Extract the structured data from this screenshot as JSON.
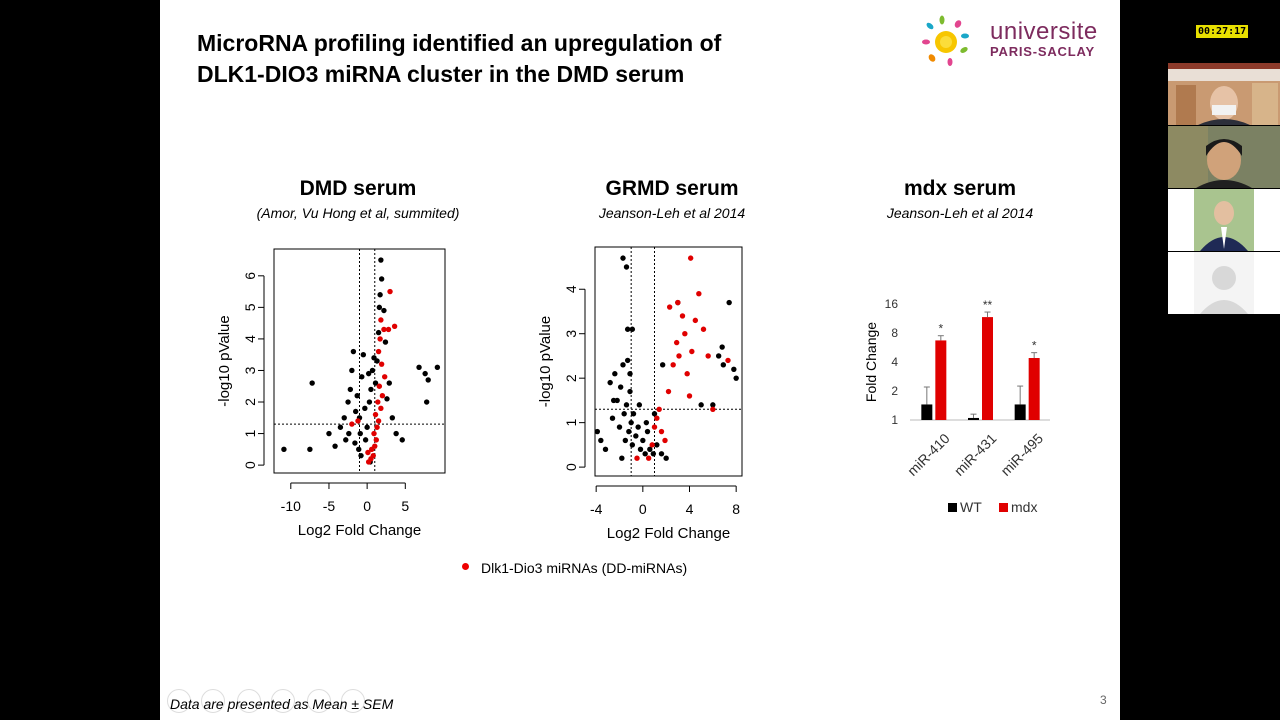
{
  "slide": {
    "title_line1": "MicroRNA profiling identified an upregulation of",
    "title_line2": "DLK1-DIO3 miRNA cluster in the DMD serum",
    "logo_line1": "universite",
    "logo_line2": "PARIS-SACLAY",
    "legend_label": "Dlk1-Dio3 miRNAs (DD-miRNAs)",
    "footnote": "Data are presented as Mean ± SEM",
    "page_number": "3"
  },
  "panels": [
    {
      "title": "DMD serum",
      "subtitle": "(Amor, Vu Hong et al, summited)"
    },
    {
      "title": "GRMD serum",
      "subtitle": "Jeanson-Leh et al 2014"
    },
    {
      "title": "mdx serum",
      "subtitle": "Jeanson-Leh et al 2014"
    }
  ],
  "colors": {
    "dd_mirna": "#e00000",
    "other_mirna": "#000000",
    "wt": "#000000",
    "mdx": "#e00000",
    "logo": "#7d2b5e"
  },
  "chart_data": [
    {
      "type": "scatter",
      "title": "DMD serum",
      "xlabel": "Log2 Fold Change",
      "ylabel": "-log10 pValue",
      "xticks": [
        -10,
        -5,
        0,
        5
      ],
      "yticks": [
        0,
        1,
        2,
        3,
        4,
        5,
        6
      ],
      "xlim": [
        -12.2,
        10.2
      ],
      "ylim": [
        -0.25,
        6.85
      ],
      "vlines": [
        -1,
        1
      ],
      "hline": 1.3,
      "series": [
        {
          "name": "Dlk1-Dio3 miRNAs (DD-miRNAs)",
          "color": "#e00000",
          "points": [
            [
              0.2,
              0.1
            ],
            [
              0.5,
              0.2
            ],
            [
              0.8,
              0.3
            ],
            [
              0.1,
              0.4
            ],
            [
              0.6,
              0.5
            ],
            [
              1.0,
              0.6
            ],
            [
              1.2,
              0.8
            ],
            [
              0.9,
              1.0
            ],
            [
              1.3,
              1.2
            ],
            [
              1.5,
              1.4
            ],
            [
              1.1,
              1.6
            ],
            [
              1.8,
              1.8
            ],
            [
              1.4,
              2.0
            ],
            [
              2.0,
              2.2
            ],
            [
              1.6,
              2.5
            ],
            [
              2.3,
              2.8
            ],
            [
              1.9,
              3.2
            ],
            [
              1.5,
              3.6
            ],
            [
              1.7,
              4.0
            ],
            [
              2.2,
              4.3
            ],
            [
              1.8,
              4.6
            ],
            [
              2.8,
              4.3
            ],
            [
              3.6,
              4.4
            ],
            [
              3.0,
              5.5
            ],
            [
              -2.0,
              1.3
            ],
            [
              -1.2,
              1.4
            ]
          ]
        },
        {
          "name": "other",
          "color": "#000000",
          "points": [
            [
              -10.9,
              0.5
            ],
            [
              -7.5,
              0.5
            ],
            [
              -7.2,
              2.6
            ],
            [
              -5.0,
              1.0
            ],
            [
              -4.2,
              0.6
            ],
            [
              -3.5,
              1.2
            ],
            [
              -3.0,
              1.5
            ],
            [
              -2.8,
              0.8
            ],
            [
              -2.5,
              2.0
            ],
            [
              -2.2,
              2.4
            ],
            [
              -2.0,
              3.0
            ],
            [
              -1.8,
              3.6
            ],
            [
              -1.5,
              1.7
            ],
            [
              -1.3,
              2.2
            ],
            [
              -1.1,
              0.5
            ],
            [
              -0.9,
              1.0
            ],
            [
              -0.7,
              2.8
            ],
            [
              -0.5,
              3.5
            ],
            [
              -0.3,
              1.8
            ],
            [
              -0.2,
              0.8
            ],
            [
              0.0,
              1.2
            ],
            [
              0.3,
              2.0
            ],
            [
              0.5,
              2.4
            ],
            [
              0.7,
              3.0
            ],
            [
              0.9,
              3.4
            ],
            [
              1.1,
              2.6
            ],
            [
              1.3,
              3.3
            ],
            [
              1.5,
              4.2
            ],
            [
              1.6,
              5.0
            ],
            [
              1.7,
              5.4
            ],
            [
              1.9,
              5.9
            ],
            [
              1.8,
              6.5
            ],
            [
              2.2,
              4.9
            ],
            [
              2.4,
              3.9
            ],
            [
              2.6,
              2.1
            ],
            [
              2.9,
              2.6
            ],
            [
              3.3,
              1.5
            ],
            [
              3.8,
              1.0
            ],
            [
              4.6,
              0.8
            ],
            [
              6.8,
              3.1
            ],
            [
              7.6,
              2.9
            ],
            [
              8.0,
              2.7
            ],
            [
              7.8,
              2.0
            ],
            [
              9.2,
              3.1
            ],
            [
              -2.4,
              1.0
            ],
            [
              -1.6,
              0.7
            ],
            [
              -0.8,
              0.3
            ],
            [
              0.4,
              0.1
            ],
            [
              -1.0,
              1.5
            ],
            [
              0.2,
              2.9
            ]
          ]
        }
      ]
    },
    {
      "type": "scatter",
      "title": "GRMD serum",
      "xlabel": "Log2 Fold Change",
      "ylabel": "-log10 pValue",
      "xticks": [
        -4,
        0,
        4,
        8
      ],
      "yticks": [
        0,
        1,
        2,
        3,
        4
      ],
      "xlim": [
        -4.1,
        8.5
      ],
      "ylim": [
        -0.2,
        4.95
      ],
      "vlines": [
        -1,
        1
      ],
      "hline": 1.3,
      "series": [
        {
          "name": "Dlk1-Dio3 miRNAs (DD-miRNAs)",
          "color": "#e00000",
          "points": [
            [
              0.5,
              0.2
            ],
            [
              0.8,
              0.5
            ],
            [
              1.0,
              0.9
            ],
            [
              1.2,
              1.1
            ],
            [
              1.4,
              1.3
            ],
            [
              1.6,
              0.8
            ],
            [
              1.9,
              0.6
            ],
            [
              2.2,
              1.7
            ],
            [
              2.6,
              2.3
            ],
            [
              2.9,
              2.8
            ],
            [
              3.1,
              2.5
            ],
            [
              3.4,
              3.4
            ],
            [
              3.6,
              3.0
            ],
            [
              3.8,
              2.1
            ],
            [
              4.0,
              1.6
            ],
            [
              4.2,
              2.6
            ],
            [
              4.5,
              3.3
            ],
            [
              4.8,
              3.9
            ],
            [
              5.2,
              3.1
            ],
            [
              5.6,
              2.5
            ],
            [
              6.0,
              1.3
            ],
            [
              2.3,
              3.6
            ],
            [
              3.0,
              3.7
            ],
            [
              4.1,
              4.7
            ],
            [
              7.3,
              2.4
            ],
            [
              -0.5,
              0.2
            ]
          ]
        },
        {
          "name": "other",
          "color": "#000000",
          "points": [
            [
              -3.9,
              0.8
            ],
            [
              -3.6,
              0.6
            ],
            [
              -3.2,
              0.4
            ],
            [
              -2.8,
              1.9
            ],
            [
              -2.6,
              1.1
            ],
            [
              -2.4,
              2.1
            ],
            [
              -2.2,
              1.5
            ],
            [
              -2.0,
              0.9
            ],
            [
              -1.9,
              1.8
            ],
            [
              -1.7,
              2.3
            ],
            [
              -1.6,
              1.2
            ],
            [
              -1.5,
              0.6
            ],
            [
              -1.4,
              1.4
            ],
            [
              -1.3,
              2.4
            ],
            [
              -1.2,
              0.8
            ],
            [
              -1.1,
              1.7
            ],
            [
              -1.0,
              1.0
            ],
            [
              -0.9,
              0.5
            ],
            [
              -0.8,
              1.2
            ],
            [
              -0.6,
              0.7
            ],
            [
              -0.4,
              0.9
            ],
            [
              -0.2,
              0.4
            ],
            [
              0.0,
              0.6
            ],
            [
              0.2,
              0.3
            ],
            [
              0.4,
              0.8
            ],
            [
              0.6,
              0.4
            ],
            [
              0.9,
              0.3
            ],
            [
              1.2,
              0.5
            ],
            [
              1.6,
              0.3
            ],
            [
              2.0,
              0.2
            ],
            [
              -1.7,
              4.7
            ],
            [
              -1.4,
              4.5
            ],
            [
              -1.3,
              3.1
            ],
            [
              -0.9,
              3.1
            ],
            [
              -1.1,
              2.1
            ],
            [
              1.7,
              2.3
            ],
            [
              3.0,
              3.7
            ],
            [
              5.0,
              1.4
            ],
            [
              6.0,
              1.4
            ],
            [
              6.5,
              2.5
            ],
            [
              6.8,
              2.7
            ],
            [
              6.9,
              2.3
            ],
            [
              7.4,
              3.7
            ],
            [
              7.8,
              2.2
            ],
            [
              8.0,
              2.0
            ],
            [
              -2.5,
              1.5
            ],
            [
              -0.3,
              1.4
            ],
            [
              0.3,
              1.0
            ],
            [
              -1.8,
              0.2
            ],
            [
              1.0,
              1.2
            ]
          ]
        }
      ]
    },
    {
      "type": "bar",
      "title": "mdx serum",
      "ylabel": "Fold Change",
      "yscale": "log2",
      "yticks": [
        1,
        2,
        4,
        8,
        16
      ],
      "ylim": [
        1,
        16
      ],
      "categories": [
        "miR-410",
        "miR-431",
        "miR-495"
      ],
      "series": [
        {
          "name": "WT",
          "color": "#000000",
          "values": [
            1.45,
            1.05,
            1.45
          ],
          "error": [
            0.75,
            0.1,
            0.8
          ]
        },
        {
          "name": "mdx",
          "color": "#e00000",
          "values": [
            6.7,
            11.7,
            4.4
          ],
          "error": [
            0.8,
            1.5,
            0.6
          ]
        }
      ],
      "annotations": [
        "*",
        "**",
        "*"
      ]
    }
  ],
  "video": {
    "timer": "00:27:17"
  }
}
